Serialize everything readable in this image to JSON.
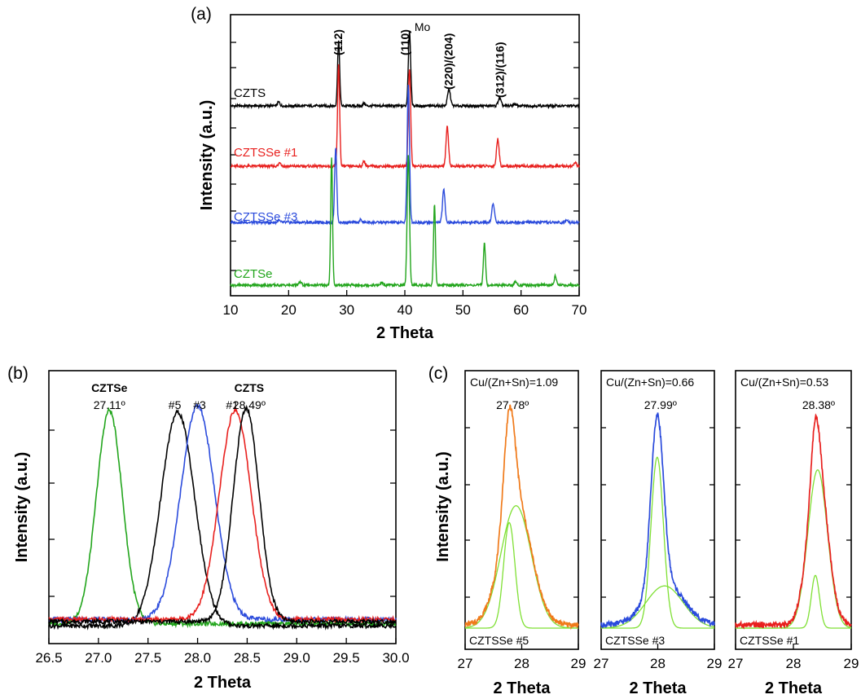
{
  "chart_data": [
    {
      "panel_label": "(a)",
      "type": "line",
      "xlabel": "2 Theta",
      "ylabel": "Intensity (a.u.)",
      "xlim": [
        10,
        70
      ],
      "xticks": [
        10,
        20,
        30,
        40,
        50,
        60,
        70
      ],
      "peak_labels": [
        {
          "text": "(112)",
          "x": 28.5
        },
        {
          "text": "(110)",
          "x": 40.0
        },
        {
          "text": "Mo",
          "x": 42.5
        },
        {
          "text": "(220)/(204)",
          "x": 47.5
        },
        {
          "text": "(312)/(116)",
          "x": 56.3
        }
      ],
      "series": [
        {
          "name": "CZTS",
          "color": "#000000",
          "offset": 3,
          "peaks": [
            [
              28.6,
              1.0,
              0.18
            ],
            [
              40.8,
              1.15,
              0.2
            ],
            [
              47.6,
              0.25,
              0.25
            ],
            [
              56.3,
              0.12,
              0.25
            ],
            [
              18.3,
              0.06,
              0.2
            ],
            [
              33.0,
              0.04,
              0.2
            ],
            [
              58.8,
              0.03,
              0.25
            ]
          ]
        },
        {
          "name": "CZTSSe #1",
          "color": "#e8201e",
          "offset": 2,
          "peaks": [
            [
              28.6,
              1.55,
              0.18
            ],
            [
              40.8,
              1.5,
              0.2
            ],
            [
              47.3,
              0.6,
              0.22
            ],
            [
              56.0,
              0.42,
              0.22
            ],
            [
              18.5,
              0.06,
              0.2
            ],
            [
              33.0,
              0.08,
              0.2
            ],
            [
              69.3,
              0.06,
              0.2
            ]
          ]
        },
        {
          "name": "CZTSSe #3",
          "color": "#2b4bdc",
          "offset": 1,
          "peaks": [
            [
              28.1,
              1.15,
              0.18
            ],
            [
              40.6,
              2.1,
              0.2
            ],
            [
              46.7,
              0.5,
              0.22
            ],
            [
              55.2,
              0.3,
              0.22
            ],
            [
              32.4,
              0.04,
              0.2
            ],
            [
              67.9,
              0.05,
              0.2
            ],
            [
              18.3,
              0.03,
              0.2
            ]
          ]
        },
        {
          "name": "CZTSe",
          "color": "#22a51c",
          "offset": 0,
          "peaks": [
            [
              27.4,
              1.95,
              0.16
            ],
            [
              40.6,
              2.0,
              0.2
            ],
            [
              45.1,
              1.25,
              0.16
            ],
            [
              53.7,
              0.65,
              0.18
            ],
            [
              65.9,
              0.14,
              0.2
            ],
            [
              59.0,
              0.05,
              0.2
            ],
            [
              22.0,
              0.05,
              0.2
            ],
            [
              36.0,
              0.04,
              0.2
            ]
          ]
        }
      ]
    },
    {
      "panel_label": "(b)",
      "type": "line",
      "xlabel": "2 Theta",
      "ylabel": "Intensity (a.u.)",
      "xlim": [
        26.5,
        30.0
      ],
      "xticks": [
        "26.5",
        "27.0",
        "27.5",
        "28.0",
        "28.5",
        "29.0",
        "29.5",
        "30.0"
      ],
      "annotations": [
        {
          "text": "CZTSe",
          "bold": true,
          "x": 27.11,
          "line": 1
        },
        {
          "text": "27.11º",
          "bold": false,
          "x": 27.11,
          "line": 2
        },
        {
          "text": "CZTS",
          "bold": true,
          "x": 28.52,
          "line": 1
        },
        {
          "text": "28.49º",
          "bold": false,
          "x": 28.52,
          "line": 2
        },
        {
          "text": "#5",
          "bold": false,
          "x": 27.77,
          "line": 2
        },
        {
          "text": "#3",
          "bold": false,
          "x": 28.02,
          "line": 2
        },
        {
          "text": "#1",
          "bold": false,
          "x": 28.35,
          "line": 2
        }
      ],
      "series": [
        {
          "name": "CZTSe",
          "color": "#22a51c",
          "center": 27.11,
          "sigma": 0.13,
          "height": 1.0,
          "base": 0.04
        },
        {
          "name": "#5",
          "color": "#000000",
          "center": 27.8,
          "sigma": 0.17,
          "height": 1.0,
          "base": 0.03
        },
        {
          "name": "#3",
          "color": "#2b4bdc",
          "center": 28.0,
          "sigma": 0.17,
          "height": 1.0,
          "base": 0.06
        },
        {
          "name": "#1",
          "color": "#e8201e",
          "center": 28.38,
          "sigma": 0.16,
          "height": 0.98,
          "base": 0.06
        },
        {
          "name": "CZTS",
          "color": "#000000",
          "center": 28.49,
          "sigma": 0.13,
          "height": 1.0,
          "base": 0.05
        }
      ]
    },
    {
      "panel_label": "(c)",
      "type": "line",
      "xlabel": "2 Theta",
      "ylabel": "Intensity (a.u.)",
      "subplots": [
        {
          "ratio": "Cu/(Zn+Sn)=1.09",
          "peak": "27.78º",
          "sample": "CZTSSe #5",
          "xlim": [
            27,
            29
          ],
          "xticks": [
            "27",
            "28",
            "29"
          ],
          "total_color": "#f07a1a",
          "components": [
            {
              "center": 27.78,
              "sigma": 0.1,
              "height": 0.5
            },
            {
              "center": 27.9,
              "sigma": 0.27,
              "height": 0.58
            }
          ]
        },
        {
          "ratio": "Cu/(Zn+Sn)=0.66",
          "peak": "27.99º",
          "sample": "CZTSSe #3",
          "xlim": [
            27,
            29
          ],
          "xticks": [
            "27",
            "28",
            "29"
          ],
          "total_color": "#2b4bdc",
          "components": [
            {
              "center": 27.99,
              "sigma": 0.11,
              "height": 0.81
            },
            {
              "center": 28.12,
              "sigma": 0.33,
              "height": 0.2
            }
          ]
        },
        {
          "ratio": "Cu/(Zn+Sn)=0.53",
          "peak": "28.38º",
          "sample": "CZTSSe #1",
          "xlim": [
            27,
            29
          ],
          "xticks": [
            "27",
            "28",
            "29"
          ],
          "total_color": "#e8201e",
          "components": [
            {
              "center": 28.38,
              "sigma": 0.07,
              "height": 0.25
            },
            {
              "center": 28.42,
              "sigma": 0.17,
              "height": 0.75
            }
          ]
        }
      ],
      "component_color": "#7fe034"
    }
  ]
}
